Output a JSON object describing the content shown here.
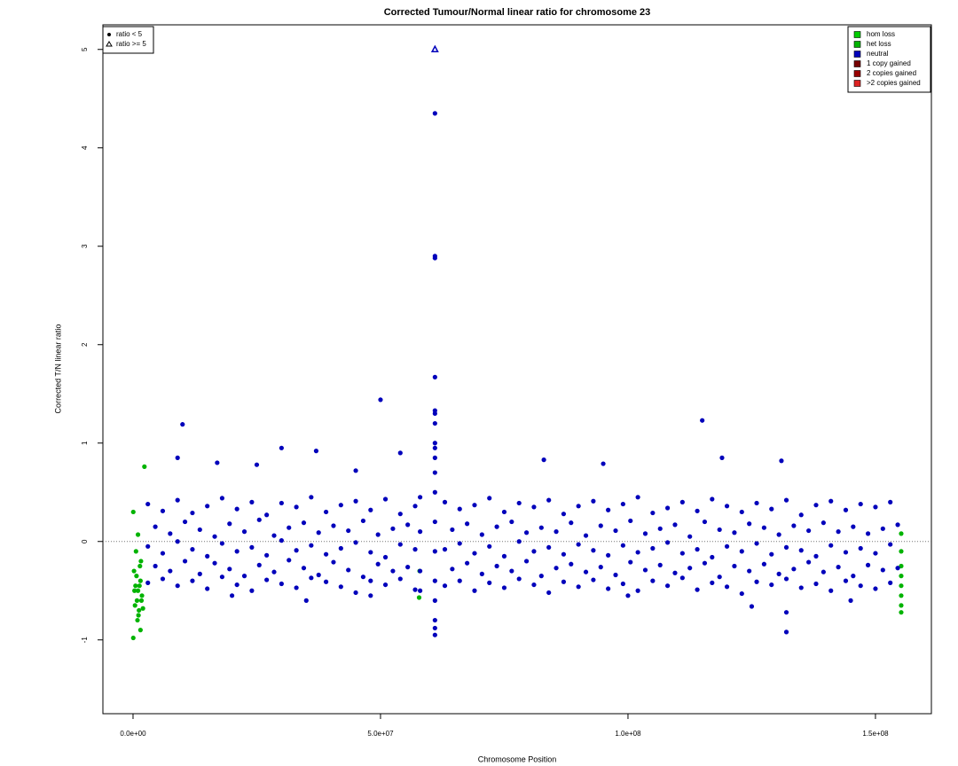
{
  "chart_data": {
    "type": "scatter",
    "title": "Corrected Tumour/Normal linear ratio for chromosome  23",
    "x_label": "Chromosome Position",
    "y_label": "Corrected T/N linear ratio",
    "xlim": [
      -6090000,
      161300000
    ],
    "ylim": [
      -1.75,
      5.25
    ],
    "xticks": [
      {
        "value": 0,
        "label": "0.0e+00"
      },
      {
        "value": 50000000,
        "label": "5.0e+07"
      },
      {
        "value": 100000000,
        "label": "1.0e+08"
      },
      {
        "value": 150000000,
        "label": "1.5e+08"
      }
    ],
    "yticks": [
      -1,
      0,
      1,
      2,
      3,
      4,
      5
    ],
    "reference_line": 0,
    "legend_position": "top-right",
    "marker_legend": [
      {
        "label": "ratio < 5",
        "marker": "circle"
      },
      {
        "label": "ratio >= 5",
        "marker": "triangle"
      }
    ],
    "series": [
      {
        "name": "hom loss",
        "color": "#00cc00",
        "x": [],
        "values": []
      },
      {
        "name": "het loss",
        "color": "#00b300",
        "x": [
          200000.0,
          500000.0,
          800000.0,
          1000000.0,
          1200000.0,
          1500000.0,
          1800000.0,
          400000.0,
          700000.0,
          1100000.0,
          1400000.0,
          1700000.0,
          300000.0,
          900000.0,
          1300000.0,
          1600000.0,
          2000000.0,
          600000.0,
          1000000.0,
          1500000.0,
          50000.0,
          50000.0,
          2300000.0,
          57800000.0,
          57900000.0,
          155200000.0,
          155200000.0,
          155200000.0,
          155200000.0,
          155200000.0,
          155200000.0,
          155200000.0,
          155200000.0
        ],
        "values": [
          -0.3,
          -0.45,
          -0.6,
          -0.5,
          -0.7,
          -0.4,
          -0.55,
          -0.65,
          -0.35,
          -0.75,
          -0.25,
          -0.6,
          -0.5,
          -0.8,
          -0.45,
          -0.2,
          -0.68,
          -0.1,
          0.07,
          -0.9,
          -0.98,
          0.3,
          0.76,
          -0.57,
          -0.3,
          -0.72,
          -0.65,
          -0.55,
          -0.45,
          -0.35,
          -0.25,
          -0.1,
          0.08
        ]
      },
      {
        "name": "neutral",
        "color": "#0000bb",
        "x": [
          3000000.0,
          6000000.0,
          9000000.0,
          12000000.0,
          15000000.0,
          18000000.0,
          21000000.0,
          24000000.0,
          27000000.0,
          30000000.0,
          33000000.0,
          36000000.0,
          39000000.0,
          42000000.0,
          45000000.0,
          48000000.0,
          51000000.0,
          54000000.0,
          57000000.0,
          4500000.0,
          7500000.0,
          10500000.0,
          13500000.0,
          16500000.0,
          19500000.0,
          22500000.0,
          25500000.0,
          28500000.0,
          31500000.0,
          34500000.0,
          37500000.0,
          40500000.0,
          43500000.0,
          46500000.0,
          49500000.0,
          52500000.0,
          55500000.0,
          3000000.0,
          6000000.0,
          9000000.0,
          12000000.0,
          15000000.0,
          18000000.0,
          21000000.0,
          24000000.0,
          27000000.0,
          30000000.0,
          33000000.0,
          36000000.0,
          39000000.0,
          42000000.0,
          45000000.0,
          48000000.0,
          51000000.0,
          54000000.0,
          57000000.0,
          4500000.0,
          7500000.0,
          10500000.0,
          13500000.0,
          16500000.0,
          19500000.0,
          22500000.0,
          25500000.0,
          28500000.0,
          31500000.0,
          34500000.0,
          37500000.0,
          40500000.0,
          43500000.0,
          46500000.0,
          49500000.0,
          52500000.0,
          55500000.0,
          3000000.0,
          6000000.0,
          9000000.0,
          12000000.0,
          15000000.0,
          18000000.0,
          21000000.0,
          24000000.0,
          27000000.0,
          30000000.0,
          33000000.0,
          36000000.0,
          39000000.0,
          42000000.0,
          45000000.0,
          48000000.0,
          51000000.0,
          54000000.0,
          57000000.0,
          63000000.0,
          66000000.0,
          69000000.0,
          72000000.0,
          75000000.0,
          78000000.0,
          81000000.0,
          84000000.0,
          87000000.0,
          90000000.0,
          93000000.0,
          96000000.0,
          99000000.0,
          102000000.0,
          105000000.0,
          108000000.0,
          111000000.0,
          114000000.0,
          117000000.0,
          120000000.0,
          123000000.0,
          126000000.0,
          129000000.0,
          132000000.0,
          135000000.0,
          138000000.0,
          141000000.0,
          144000000.0,
          147000000.0,
          150000000.0,
          153000000.0,
          64500000.0,
          67500000.0,
          70500000.0,
          73500000.0,
          76500000.0,
          79500000.0,
          82500000.0,
          85500000.0,
          88500000.0,
          91500000.0,
          94500000.0,
          97500000.0,
          100500000.0,
          103500000.0,
          106500000.0,
          109500000.0,
          112500000.0,
          115500000.0,
          118500000.0,
          121500000.0,
          124500000.0,
          127500000.0,
          130500000.0,
          133500000.0,
          136500000.0,
          139500000.0,
          142500000.0,
          145500000.0,
          148500000.0,
          151500000.0,
          154500000.0,
          63000000.0,
          66000000.0,
          69000000.0,
          72000000.0,
          75000000.0,
          78000000.0,
          81000000.0,
          84000000.0,
          87000000.0,
          90000000.0,
          93000000.0,
          96000000.0,
          99000000.0,
          102000000.0,
          105000000.0,
          108000000.0,
          111000000.0,
          114000000.0,
          117000000.0,
          120000000.0,
          123000000.0,
          126000000.0,
          129000000.0,
          132000000.0,
          135000000.0,
          138000000.0,
          141000000.0,
          144000000.0,
          147000000.0,
          150000000.0,
          153000000.0,
          64500000.0,
          67500000.0,
          70500000.0,
          73500000.0,
          76500000.0,
          79500000.0,
          82500000.0,
          85500000.0,
          88500000.0,
          91500000.0,
          94500000.0,
          97500000.0,
          100500000.0,
          103500000.0,
          106500000.0,
          109500000.0,
          112500000.0,
          115500000.0,
          118500000.0,
          121500000.0,
          124500000.0,
          127500000.0,
          130500000.0,
          133500000.0,
          136500000.0,
          139500000.0,
          142500000.0,
          145500000.0,
          148500000.0,
          151500000.0,
          154500000.0,
          63000000.0,
          66000000.0,
          69000000.0,
          72000000.0,
          75000000.0,
          78000000.0,
          81000000.0,
          84000000.0,
          87000000.0,
          90000000.0,
          93000000.0,
          96000000.0,
          99000000.0,
          102000000.0,
          105000000.0,
          108000000.0,
          111000000.0,
          114000000.0,
          117000000.0,
          120000000.0,
          123000000.0,
          126000000.0,
          129000000.0,
          132000000.0,
          135000000.0,
          138000000.0,
          141000000.0,
          144000000.0,
          147000000.0,
          150000000.0,
          153000000.0,
          61000000.0,
          61000000.0,
          61000000.0,
          61000000.0,
          61000000.0,
          61000000.0,
          61000000.0,
          61000000.0,
          61000000.0,
          61000000.0,
          61000000.0,
          61000000.0,
          61000000.0,
          61000000.0,
          61000000.0,
          61000000.0,
          61000000.0,
          61000000.0,
          61000000.0,
          9000000.0,
          10000000.0,
          17000000.0,
          30000000.0,
          37000000.0,
          50000000.0,
          54000000.0,
          25000000.0,
          45000000.0,
          20000000.0,
          35000000.0,
          48000000.0,
          58000000.0,
          58000000.0,
          58000000.0,
          58000000.0,
          115000000.0,
          119000000.0,
          132000000.0,
          132000000.0,
          131000000.0,
          83000000.0,
          95000000.0,
          125000000.0,
          145000000.0,
          100000000.0
        ],
        "values": [
          0.38,
          0.31,
          0.42,
          0.29,
          0.36,
          0.44,
          0.33,
          0.4,
          0.27,
          0.39,
          0.35,
          0.45,
          0.3,
          0.37,
          0.41,
          0.32,
          0.43,
          0.28,
          0.36,
          0.15,
          0.08,
          0.2,
          0.12,
          0.05,
          0.18,
          0.1,
          0.22,
          0.06,
          0.14,
          0.19,
          0.09,
          0.16,
          0.11,
          0.21,
          0.07,
          0.13,
          0.17,
          -0.05,
          -0.12,
          0,
          -0.08,
          -0.15,
          -0.02,
          -0.1,
          -0.06,
          -0.14,
          0.01,
          -0.09,
          -0.04,
          -0.13,
          -0.07,
          -0.01,
          -0.11,
          -0.16,
          -0.03,
          -0.08,
          -0.25,
          -0.3,
          -0.2,
          -0.33,
          -0.22,
          -0.28,
          -0.35,
          -0.24,
          -0.31,
          -0.19,
          -0.27,
          -0.34,
          -0.21,
          -0.29,
          -0.36,
          -0.23,
          -0.3,
          -0.26,
          -0.42,
          -0.38,
          -0.45,
          -0.4,
          -0.48,
          -0.36,
          -0.44,
          -0.5,
          -0.39,
          -0.43,
          -0.47,
          -0.37,
          -0.41,
          -0.46,
          -0.52,
          -0.4,
          -0.44,
          -0.38,
          -0.49,
          0.4,
          0.33,
          0.37,
          0.44,
          0.3,
          0.39,
          0.35,
          0.42,
          0.28,
          0.36,
          0.41,
          0.32,
          0.38,
          0.45,
          0.29,
          0.34,
          0.4,
          0.31,
          0.43,
          0.36,
          0.3,
          0.39,
          0.33,
          0.42,
          0.27,
          0.37,
          0.41,
          0.32,
          0.38,
          0.35,
          0.4,
          0.12,
          0.18,
          0.07,
          0.15,
          0.2,
          0.09,
          0.14,
          0.1,
          0.19,
          0.06,
          0.16,
          0.11,
          0.21,
          0.08,
          0.13,
          0.17,
          0.05,
          0.2,
          0.12,
          0.09,
          0.18,
          0.14,
          0.07,
          0.16,
          0.11,
          0.19,
          0.1,
          0.15,
          0.08,
          0.13,
          0.17,
          -0.08,
          -0.02,
          -0.12,
          -0.05,
          -0.15,
          0,
          -0.1,
          -0.06,
          -0.13,
          -0.03,
          -0.09,
          -0.14,
          -0.04,
          -0.11,
          -0.07,
          -0.01,
          -0.12,
          -0.08,
          -0.16,
          -0.05,
          -0.1,
          -0.02,
          -0.13,
          -0.06,
          -0.09,
          -0.15,
          -0.04,
          -0.11,
          -0.07,
          -0.12,
          -0.03,
          -0.28,
          -0.22,
          -0.33,
          -0.25,
          -0.3,
          -0.2,
          -0.35,
          -0.27,
          -0.23,
          -0.31,
          -0.26,
          -0.34,
          -0.21,
          -0.29,
          -0.24,
          -0.32,
          -0.27,
          -0.22,
          -0.36,
          -0.25,
          -0.3,
          -0.23,
          -0.33,
          -0.28,
          -0.21,
          -0.31,
          -0.26,
          -0.35,
          -0.24,
          -0.29,
          -0.27,
          -0.45,
          -0.4,
          -0.5,
          -0.42,
          -0.47,
          -0.38,
          -0.44,
          -0.52,
          -0.41,
          -0.46,
          -0.39,
          -0.48,
          -0.43,
          -0.5,
          -0.4,
          -0.45,
          -0.37,
          -0.49,
          -0.42,
          -0.46,
          -0.53,
          -0.41,
          -0.44,
          -0.38,
          -0.47,
          -0.43,
          -0.5,
          -0.4,
          -0.45,
          -0.48,
          -0.42,
          4.35,
          2.88,
          2.9,
          1.67,
          1.33,
          1.3,
          1.2,
          1.0,
          0.95,
          0.85,
          0.7,
          0.5,
          0.2,
          -0.1,
          -0.4,
          -0.6,
          -0.8,
          -0.88,
          -0.95,
          0.85,
          1.19,
          0.8,
          0.95,
          0.92,
          1.44,
          0.9,
          0.78,
          0.72,
          -0.55,
          -0.6,
          -0.55,
          0.45,
          0.1,
          -0.3,
          -0.5,
          1.23,
          0.85,
          -0.92,
          -0.72,
          0.82,
          0.83,
          0.79,
          -0.66,
          -0.6,
          -0.55
        ]
      },
      {
        "name": "1 copy gained",
        "color": "#770000",
        "x": [],
        "values": []
      },
      {
        "name": "2 copies gained",
        "color": "#990000",
        "x": [],
        "values": []
      },
      {
        "name": ">2 copies gained",
        "color": "#dd2222",
        "x": [],
        "values": []
      }
    ],
    "capped": {
      "x": [
        61000000
      ],
      "values": [
        5
      ],
      "color": "#0000bb"
    }
  }
}
